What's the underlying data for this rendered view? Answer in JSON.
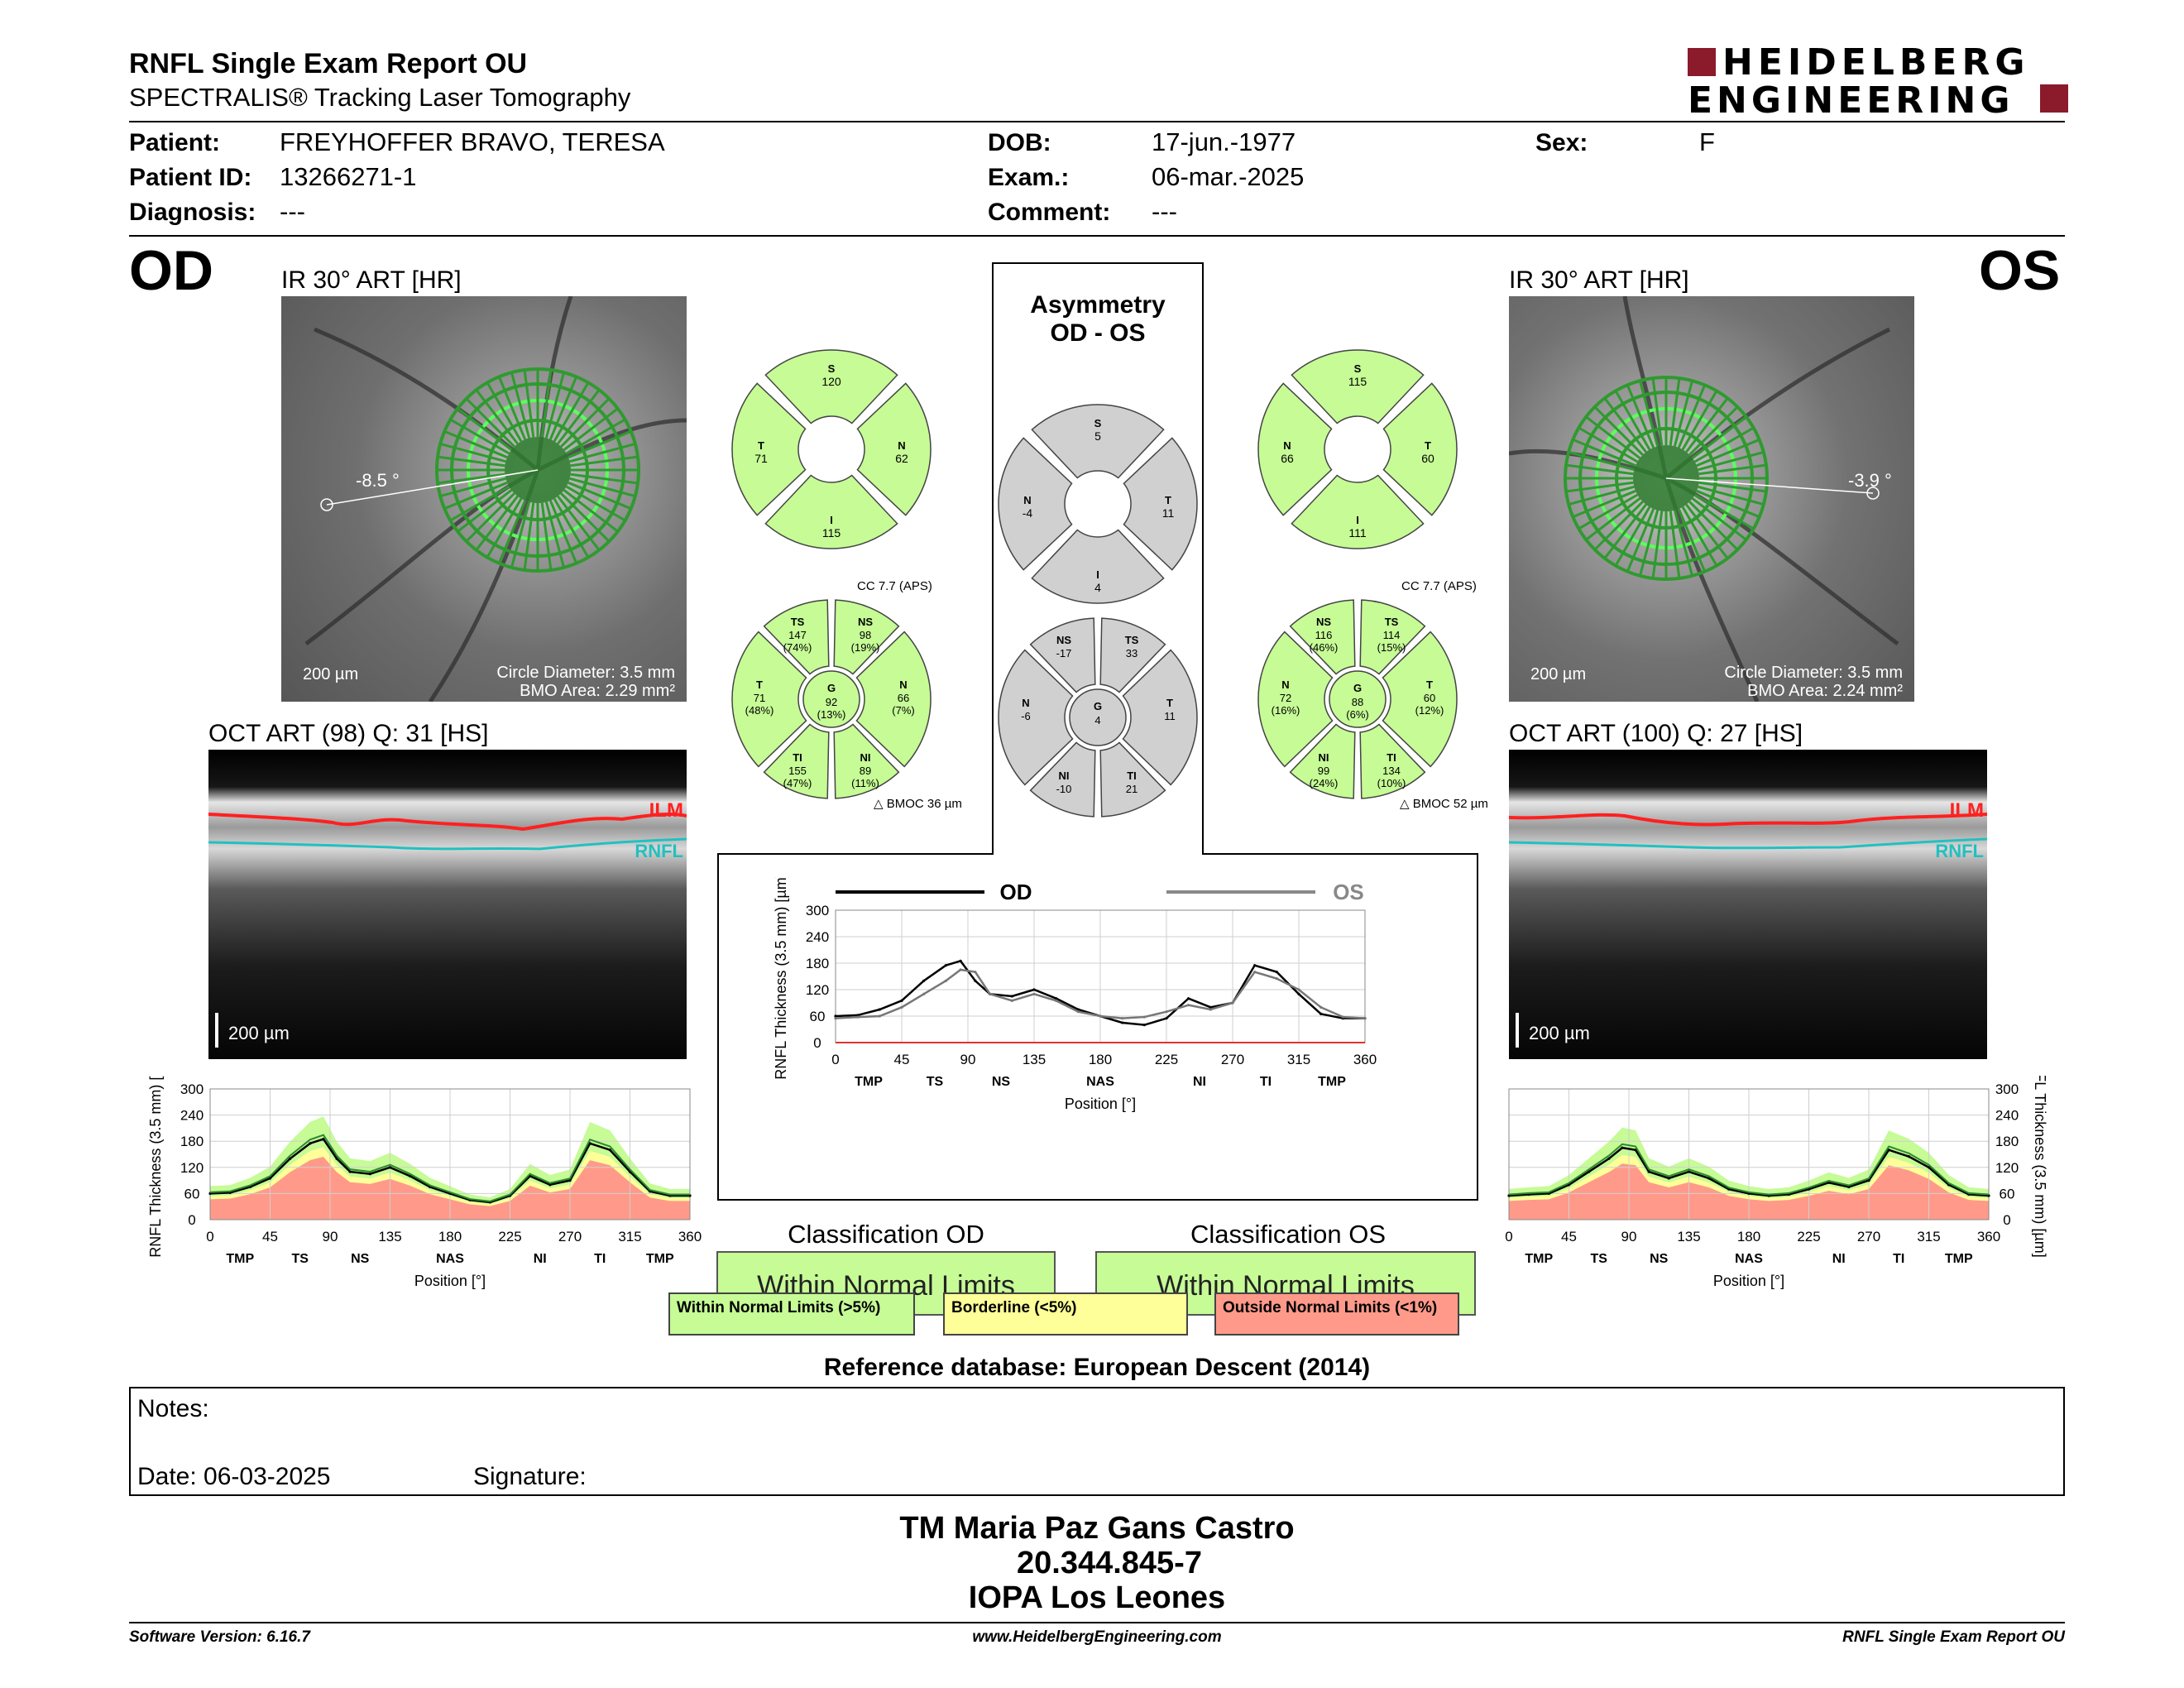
{
  "header": {
    "title": "RNFL Single Exam Report OU",
    "subtitle": "SPECTRALIS® Tracking Laser Tomography",
    "logo_line1": "HEIDELBERG",
    "logo_line2": "ENGINEERING"
  },
  "patient": {
    "patient_label": "Patient:",
    "patient_value": "FREYHOFFER BRAVO, TERESA",
    "id_label": "Patient ID:",
    "id_value": "13266271-1",
    "diagnosis_label": "Diagnosis:",
    "diagnosis_value": "---",
    "dob_label": "DOB:",
    "dob_value": "17-jun.-1977",
    "exam_label": "Exam.:",
    "exam_value": "06-mar.-2025",
    "comment_label": "Comment:",
    "comment_value": "---",
    "sex_label": "Sex:",
    "sex_value": "F"
  },
  "od": {
    "eye": "OD",
    "ir_title": "IR 30° ART [HR]",
    "angle": "-8.5 °",
    "scale": "200 µm",
    "circle_diameter": "Circle Diameter: 3.5 mm",
    "bmo_area": "BMO Area: 2.29 mm²",
    "oct_title": "OCT ART (98) Q: 31 [HS]",
    "ilm": "ILM",
    "rnfl": "RNFL",
    "oct_scale": "200 µm",
    "classification_title": "Classification OD",
    "classification": "Within Normal Limits",
    "sectors4": {
      "S": "120",
      "N": "62",
      "I": "115",
      "T": "71"
    },
    "cc": "CC 7.7 (APS)",
    "bmoc": "BMOC 36 µm",
    "sectors6": {
      "TS": [
        "147",
        "(74%)"
      ],
      "NS": [
        "98",
        "(19%)"
      ],
      "N": [
        "66",
        "(7%)"
      ],
      "NI": [
        "89",
        "(11%)"
      ],
      "TI": [
        "155",
        "(47%)"
      ],
      "T": [
        "71",
        "(48%)"
      ],
      "G": [
        "92",
        "(13%)"
      ]
    }
  },
  "os": {
    "eye": "OS",
    "ir_title": "IR 30° ART [HR]",
    "angle": "-3.9 °",
    "scale": "200 µm",
    "circle_diameter": "Circle Diameter: 3.5 mm",
    "bmo_area": "BMO Area: 2.24 mm²",
    "oct_title": "OCT ART (100) Q: 27 [HS]",
    "ilm": "ILM",
    "rnfl": "RNFL",
    "oct_scale": "200 µm",
    "classification_title": "Classification OS",
    "classification": "Within Normal Limits",
    "sectors4": {
      "S": "115",
      "N": "66",
      "I": "111",
      "T": "60"
    },
    "cc": "CC 7.7 (APS)",
    "bmoc": "BMOC 52 µm",
    "sectors6": {
      "NS": [
        "116",
        "(46%)"
      ],
      "TS": [
        "114",
        "(15%)"
      ],
      "T": [
        "60",
        "(12%)"
      ],
      "TI": [
        "134",
        "(10%)"
      ],
      "NI": [
        "99",
        "(24%)"
      ],
      "N": [
        "72",
        "(16%)"
      ],
      "G": [
        "88",
        "(6%)"
      ]
    }
  },
  "asymmetry": {
    "title_line1": "Asymmetry",
    "title_line2": "OD - OS",
    "sectors4": {
      "S": "5",
      "N": "-4",
      "I": "4",
      "T": "11"
    },
    "sectors6": {
      "NS": "-17",
      "TS": "33",
      "T": "11",
      "TI": "21",
      "NI": "-10",
      "N": "-6",
      "G": "4"
    }
  },
  "legend": {
    "wnl": "Within Normal Limits (>5%)",
    "borderline": "Borderline (<5%)",
    "onl": "Outside Normal Limits (<1%)",
    "colors": {
      "wnl": "#c6fb96",
      "borderline": "#ffff99",
      "onl": "#ff9a8a"
    }
  },
  "reference": "Reference database: European Descent (2014)",
  "notes": {
    "notes_label": "Notes:",
    "date_label": "Date: 06-03-2025",
    "signature_label": "Signature:"
  },
  "signature_block": {
    "line1": "TM Maria Paz Gans Castro",
    "line2": "20.344.845-7",
    "line3": "IOPA Los Leones"
  },
  "footer": {
    "left": "Software Version: 6.16.7",
    "center": "www.HeidelbergEngineering.com",
    "right": "RNFL Single Exam Report OU"
  },
  "chart_data": [
    {
      "type": "line",
      "title": "",
      "xlabel": "Position [°]",
      "ylabel": "RNFL Thickness (3.5 mm) [µm]",
      "xlim": [
        0,
        360
      ],
      "ylim": [
        0,
        300
      ],
      "xticks": [
        "0",
        "45",
        "90",
        "135",
        "180",
        "225",
        "270",
        "315",
        "360"
      ],
      "yticks": [
        "0",
        "60",
        "120",
        "180",
        "240",
        "300"
      ],
      "sector_labels": [
        "TMP",
        "TS",
        "NS",
        "NAS",
        "NI",
        "TI",
        "TMP"
      ],
      "legend": [
        "OD",
        "OS"
      ],
      "x": [
        0,
        15,
        30,
        45,
        60,
        75,
        85,
        95,
        105,
        120,
        135,
        150,
        165,
        180,
        195,
        210,
        225,
        240,
        255,
        270,
        285,
        300,
        315,
        330,
        345,
        360
      ],
      "series": [
        {
          "name": "OD",
          "values": [
            60,
            62,
            75,
            95,
            140,
            175,
            185,
            140,
            110,
            105,
            120,
            100,
            75,
            60,
            45,
            40,
            55,
            100,
            80,
            90,
            175,
            160,
            110,
            65,
            55,
            55
          ]
        },
        {
          "name": "OS",
          "values": [
            55,
            58,
            60,
            80,
            110,
            140,
            165,
            160,
            110,
            95,
            110,
            95,
            70,
            60,
            55,
            58,
            70,
            85,
            75,
            90,
            160,
            145,
            120,
            80,
            58,
            55
          ]
        }
      ]
    },
    {
      "type": "area",
      "xlabel": "Position [°]",
      "ylabel": "RNFL Thickness (3.5 mm) [µm]",
      "xlim": [
        0,
        360
      ],
      "ylim": [
        0,
        300
      ],
      "xticks": [
        "0",
        "45",
        "90",
        "135",
        "180",
        "225",
        "270",
        "315",
        "360"
      ],
      "yticks": [
        "0",
        "60",
        "120",
        "180",
        "240",
        "300"
      ],
      "sector_labels": [
        "TMP",
        "TS",
        "NS",
        "NAS",
        "NI",
        "TI",
        "TMP"
      ],
      "x": [
        0,
        15,
        30,
        45,
        60,
        75,
        85,
        95,
        105,
        120,
        135,
        150,
        165,
        180,
        195,
        210,
        225,
        240,
        255,
        270,
        285,
        300,
        315,
        330,
        345,
        360
      ],
      "series": [
        {
          "name": "OD",
          "values": [
            60,
            62,
            75,
            95,
            140,
            175,
            185,
            140,
            110,
            105,
            120,
            100,
            75,
            60,
            45,
            40,
            55,
            100,
            80,
            90,
            175,
            160,
            110,
            65,
            55,
            55
          ]
        }
      ]
    },
    {
      "type": "area",
      "xlabel": "Position [°]",
      "ylabel": "RNFL Thickness (3.5 mm) [µm]",
      "xlim": [
        0,
        360
      ],
      "ylim": [
        0,
        300
      ],
      "xticks": [
        "0",
        "45",
        "90",
        "135",
        "180",
        "225",
        "270",
        "315",
        "360"
      ],
      "yticks": [
        "0",
        "60",
        "120",
        "180",
        "240",
        "300"
      ],
      "sector_labels": [
        "TMP",
        "TS",
        "NS",
        "NAS",
        "NI",
        "TI",
        "TMP"
      ],
      "x": [
        0,
        15,
        30,
        45,
        60,
        75,
        85,
        95,
        105,
        120,
        135,
        150,
        165,
        180,
        195,
        210,
        225,
        240,
        255,
        270,
        285,
        300,
        315,
        330,
        345,
        360
      ],
      "series": [
        {
          "name": "OS",
          "values": [
            55,
            58,
            60,
            80,
            110,
            140,
            165,
            160,
            110,
            95,
            110,
            95,
            70,
            60,
            55,
            58,
            70,
            85,
            75,
            90,
            160,
            145,
            120,
            80,
            58,
            55
          ]
        }
      ]
    }
  ]
}
